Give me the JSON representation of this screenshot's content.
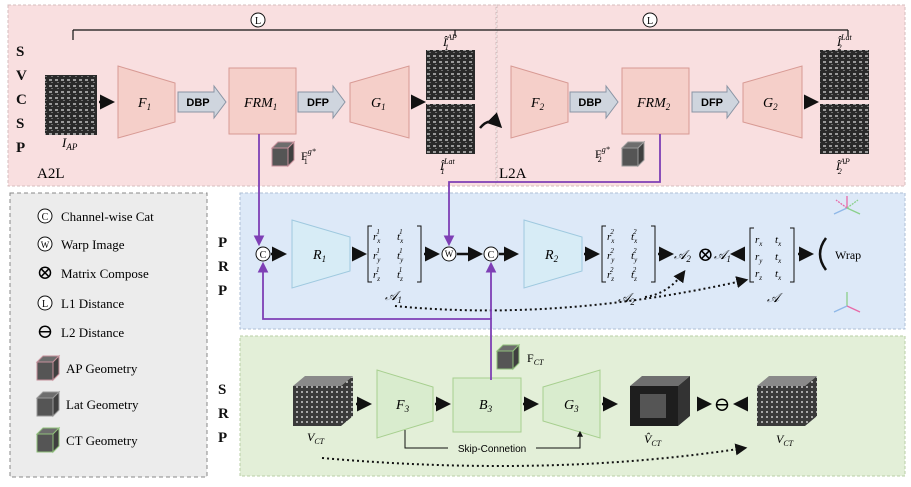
{
  "sections": {
    "svcsp": {
      "letters": [
        "S",
        "V",
        "C",
        "S",
        "P"
      ],
      "left_label": "A2L",
      "right_label": "L2A"
    },
    "prp": {
      "letters": [
        "P",
        "R",
        "P"
      ]
    },
    "srp": {
      "letters": [
        "S",
        "R",
        "P"
      ]
    }
  },
  "symbols": {
    "L": "L",
    "C": "C",
    "W": "W"
  },
  "legend": {
    "items": [
      {
        "symbol": "C",
        "label": "Channel-wise Cat"
      },
      {
        "symbol": "W",
        "label": "Warp Image"
      },
      {
        "symbol": "⊗",
        "label": "Matrix Compose"
      },
      {
        "symbol": "L",
        "label": "L1 Distance"
      },
      {
        "symbol": "⊖",
        "label": "L2 Distance"
      },
      {
        "symbol": "",
        "label": "AP Geometry"
      },
      {
        "symbol": "",
        "label": "Lat Geometry"
      },
      {
        "symbol": "",
        "label": "CT Geometry"
      }
    ]
  },
  "svcsp": {
    "input_label": "I",
    "input_sub": "AP",
    "F1": "F",
    "F1_sub": "1",
    "FRM1": "FRM",
    "FRM1_sub": "1",
    "G1": "G",
    "G1_sub": "1",
    "F2": "F",
    "F2_sub": "2",
    "FRM2": "FRM",
    "FRM2_sub": "2",
    "G2": "G",
    "G2_sub": "2",
    "dbp": "DBP",
    "dfp": "DFP",
    "geo1": "F",
    "geo1_sup": "g*",
    "geo1_sub": "1",
    "geo2": "F",
    "geo2_sup": "g*",
    "geo2_sub": "2",
    "out1_top": "Î",
    "out1_top_sup": "AP",
    "out1_top_sub": "1",
    "out1_bot": "Î",
    "out1_bot_sup": "Lat",
    "out1_bot_sub": "1",
    "out2_top": "Î",
    "out2_top_sup": "Lat",
    "out2_top_sub": "2",
    "out2_bot": "Î",
    "out2_bot_sup": "AP",
    "out2_bot_sub": "2"
  },
  "prp": {
    "R1": "R",
    "R1_sub": "1",
    "R2": "R",
    "R2_sub": "2",
    "m1_rows": [
      [
        "r",
        "x",
        "1",
        "t",
        "x",
        "1"
      ],
      [
        "r",
        "y",
        "1",
        "t",
        "y",
        "1"
      ],
      [
        "r",
        "z",
        "1",
        "t",
        "z",
        "1"
      ]
    ],
    "m2_rows": [
      [
        "r",
        "x",
        "2",
        "t",
        "x",
        "2"
      ],
      [
        "r",
        "y",
        "2",
        "t",
        "y",
        "2"
      ],
      [
        "r",
        "z",
        "2",
        "t",
        "z",
        "2"
      ]
    ],
    "m_rows": [
      [
        "r",
        "x",
        "t",
        "x"
      ],
      [
        "r",
        "y",
        "t",
        "x"
      ],
      [
        "r",
        "z",
        "t",
        "x"
      ]
    ],
    "A1": "𝒜",
    "A1_sub": "1",
    "A2": "𝒜",
    "A2_sub": "2",
    "A": "𝒜",
    "compose_symbol": "⊗",
    "wrap": "Wrap"
  },
  "srp": {
    "F3": "F",
    "F3_sub": "3",
    "B3": "B",
    "B3_sub": "3",
    "G3": "G",
    "G3_sub": "3",
    "fct": "F",
    "fct_sub": "CT",
    "skip": "Skip-Conneti​on",
    "vct_in": "V",
    "vct_in_sub": "CT",
    "vct_hat": "V̂",
    "vct_hat_sub": "CT",
    "vct_gt": "V",
    "vct_gt_sub": "CT",
    "l2_symbol": "⊖"
  },
  "colors": {
    "svcsp_bg": "#f9dfe0",
    "prp_bg": "#dde9f8",
    "srp_bg": "#e3efd8",
    "legend_bg": "#ececec",
    "trap_pink": "#f5cfc9",
    "trap_blue": "#d7ecf6",
    "trap_green": "#d9ecce",
    "purple": "#7e3fb5"
  }
}
